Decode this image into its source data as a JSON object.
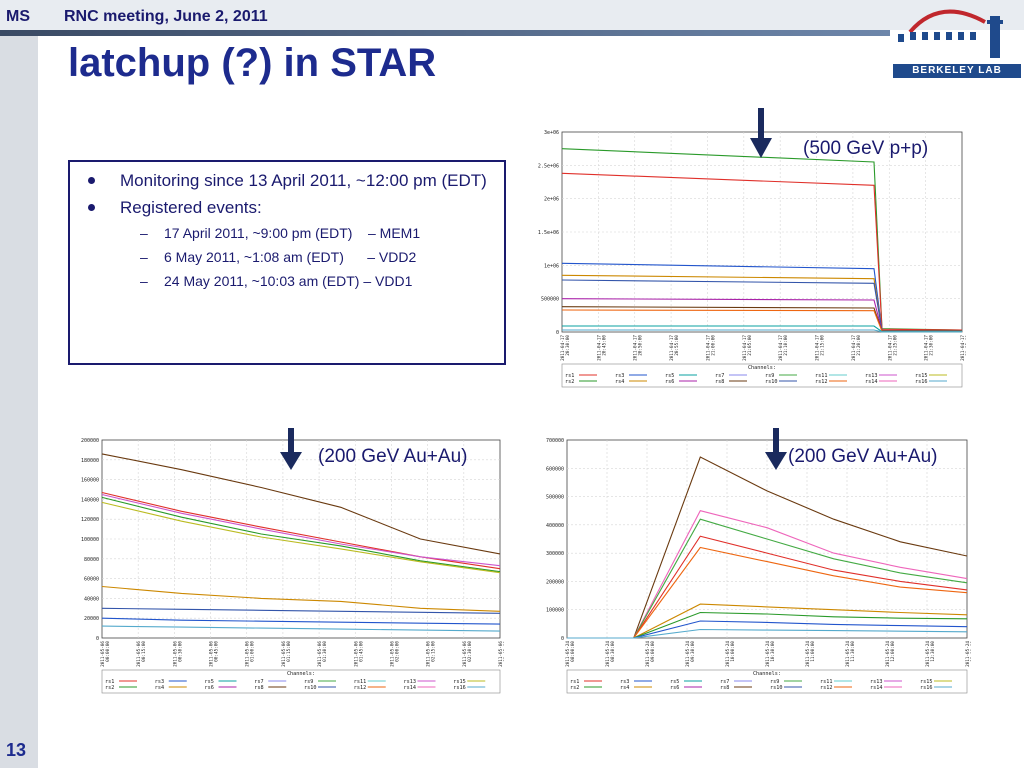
{
  "header": {
    "ms": "MS",
    "meeting": "RNC meeting, June 2, 2011",
    "title": "latchup (?) in STAR",
    "logo_text": "BERKELEY LAB",
    "page_number": "13"
  },
  "textbox": {
    "bullets": [
      {
        "text": "Monitoring since 13 April 2011, ~12:00 pm (EDT)"
      },
      {
        "text": "Registered events:"
      }
    ],
    "subbullets": [
      {
        "text": "17 April 2011, ~9:00 pm (EDT)    – MEM1"
      },
      {
        "text": "6 May 2011, ~1:08 am (EDT)      – VDD2"
      },
      {
        "text": "24 May 2011, ~10:03 am (EDT) – VDD1"
      }
    ]
  },
  "annotations": {
    "chart1": "(500 GeV p+p)",
    "chart2": "(200 GeV Au+Au)",
    "chart3": "(200 GeV Au+Au)"
  },
  "legend": {
    "title": "Channels:",
    "channels": [
      "rs1",
      "rs2",
      "rs3",
      "rs4",
      "rs5",
      "rs6",
      "rs7",
      "rs8",
      "rs9",
      "rs10",
      "rs11",
      "rs12",
      "rs13",
      "rs14",
      "rs15",
      "rs16"
    ],
    "colors": [
      "#e0302a",
      "#2a9a2a",
      "#2255cc",
      "#cc8800",
      "#0aa0a0",
      "#aa22aa",
      "#8888ee",
      "#6a3a10",
      "#44aa44",
      "#3355aa",
      "#66cccc",
      "#ee6611",
      "#cc55cc",
      "#ee66bb",
      "#bbbb22",
      "#55aacc"
    ]
  },
  "chart_data": [
    {
      "type": "line",
      "title": "(500 GeV p+p)",
      "ylim": [
        0,
        3000000
      ],
      "yticks": [
        "0",
        "500000",
        "1e+06",
        "1.5e+06",
        "2e+06",
        "2.5e+06",
        "3e+06"
      ],
      "xticks": [
        "2011-04-17\n20:30:00",
        "2011-04-17\n20:45:00",
        "2011-04-17\n20:50:00",
        "2011-04-17\n20:55:00",
        "2011-04-17\n21:00:00",
        "2011-04-17\n21:05:00",
        "2011-04-17\n21:10:00",
        "2011-04-17\n21:15:00",
        "2011-04-17\n21:20:00",
        "2011-04-17\n21:25:00",
        "2011-04-17\n21:30:00",
        "2011-04-17\n21:35:00"
      ],
      "x_norm": [
        0,
        0.78,
        0.8,
        1
      ],
      "series": [
        {
          "name": "rs2",
          "values": [
            2750000,
            2550000,
            50000,
            30000
          ]
        },
        {
          "name": "rs1",
          "values": [
            2380000,
            2200000,
            40000,
            30000
          ]
        },
        {
          "name": "rs3",
          "values": [
            1030000,
            950000,
            20000,
            20000
          ]
        },
        {
          "name": "rs4",
          "values": [
            850000,
            800000,
            20000,
            20000
          ]
        },
        {
          "name": "rs10",
          "values": [
            780000,
            730000,
            20000,
            20000
          ]
        },
        {
          "name": "rs6",
          "values": [
            500000,
            480000,
            15000,
            15000
          ]
        },
        {
          "name": "rs8",
          "values": [
            380000,
            360000,
            15000,
            15000
          ]
        },
        {
          "name": "rs12",
          "values": [
            330000,
            320000,
            10000,
            10000
          ]
        },
        {
          "name": "rs5",
          "values": [
            90000,
            90000,
            5000,
            5000
          ]
        },
        {
          "name": "rs16",
          "values": [
            30000,
            30000,
            3000,
            3000
          ]
        }
      ]
    },
    {
      "type": "line",
      "title": "(200 GeV Au+Au)",
      "ylim": [
        0,
        200000
      ],
      "yticks": [
        "0",
        "20000",
        "40000",
        "60000",
        "80000",
        "100000",
        "120000",
        "140000",
        "160000",
        "180000",
        "200000"
      ],
      "xticks": [
        "2011-05-06\n00:00:00",
        "2011-05-06\n00:15:00",
        "2011-05-06\n00:30:00",
        "2011-05-06\n00:45:00",
        "2011-05-06\n01:00:00",
        "2011-05-06\n01:15:00",
        "2011-05-06\n01:30:00",
        "2011-05-06\n01:45:00",
        "2011-05-06\n02:00:00",
        "2011-05-06\n02:15:00",
        "2011-05-06\n02:30:00",
        "2011-05-06\n02:45:00"
      ],
      "series": [
        {
          "name": "rs8",
          "values": [
            186000,
            170000,
            152000,
            132000,
            100000,
            85000
          ]
        },
        {
          "name": "rs1",
          "values": [
            147000,
            128000,
            112000,
            97000,
            82000,
            70000
          ]
        },
        {
          "name": "rs13",
          "values": [
            145000,
            126000,
            110000,
            95000,
            82000,
            73000
          ]
        },
        {
          "name": "rs2",
          "values": [
            142000,
            122000,
            105000,
            93000,
            78000,
            67000
          ]
        },
        {
          "name": "rs15",
          "values": [
            137000,
            118000,
            102000,
            90000,
            77000,
            66000
          ]
        },
        {
          "name": "rs4",
          "values": [
            52000,
            45000,
            40000,
            37000,
            30000,
            27000
          ]
        },
        {
          "name": "rs10",
          "values": [
            30000,
            29000,
            28000,
            27000,
            26000,
            25000
          ]
        },
        {
          "name": "rs3",
          "values": [
            20000,
            18000,
            17000,
            16000,
            15000,
            14000
          ]
        },
        {
          "name": "rs16",
          "values": [
            12000,
            11000,
            10000,
            9000,
            8000,
            7000
          ]
        }
      ]
    },
    {
      "type": "line",
      "title": "(200 GeV Au+Au)",
      "ylim": [
        0,
        700000
      ],
      "yticks": [
        "0",
        "100000",
        "200000",
        "300000",
        "400000",
        "500000",
        "600000",
        "700000"
      ],
      "xticks": [
        "2011-05-24\n08:00:00",
        "2011-05-24\n08:30:00",
        "2011-05-24\n09:00:00",
        "2011-05-24\n09:30:00",
        "2011-05-24\n10:00:00",
        "2011-05-24\n10:30:00",
        "2011-05-24\n11:00:00",
        "2011-05-24\n11:30:00",
        "2011-05-24\n12:00:00",
        "2011-05-24\n12:30:00",
        "2011-05-24\n13:00:00"
      ],
      "series": [
        {
          "name": "rs8",
          "values": [
            0,
            0,
            640000,
            520000,
            420000,
            340000,
            290000
          ]
        },
        {
          "name": "rs14",
          "values": [
            0,
            0,
            450000,
            390000,
            300000,
            250000,
            210000
          ]
        },
        {
          "name": "rs9",
          "values": [
            0,
            0,
            420000,
            350000,
            280000,
            230000,
            195000
          ]
        },
        {
          "name": "rs1",
          "values": [
            0,
            0,
            360000,
            300000,
            240000,
            200000,
            170000
          ]
        },
        {
          "name": "rs12",
          "values": [
            0,
            0,
            320000,
            270000,
            220000,
            180000,
            160000
          ]
        },
        {
          "name": "rs4",
          "values": [
            0,
            0,
            120000,
            110000,
            100000,
            90000,
            82000
          ]
        },
        {
          "name": "rs2",
          "values": [
            0,
            0,
            90000,
            85000,
            75000,
            70000,
            68000
          ]
        },
        {
          "name": "rs3",
          "values": [
            0,
            0,
            60000,
            55000,
            48000,
            44000,
            40000
          ]
        },
        {
          "name": "rs16",
          "values": [
            0,
            0,
            30000,
            28000,
            26000,
            24000,
            22000
          ]
        }
      ]
    }
  ]
}
